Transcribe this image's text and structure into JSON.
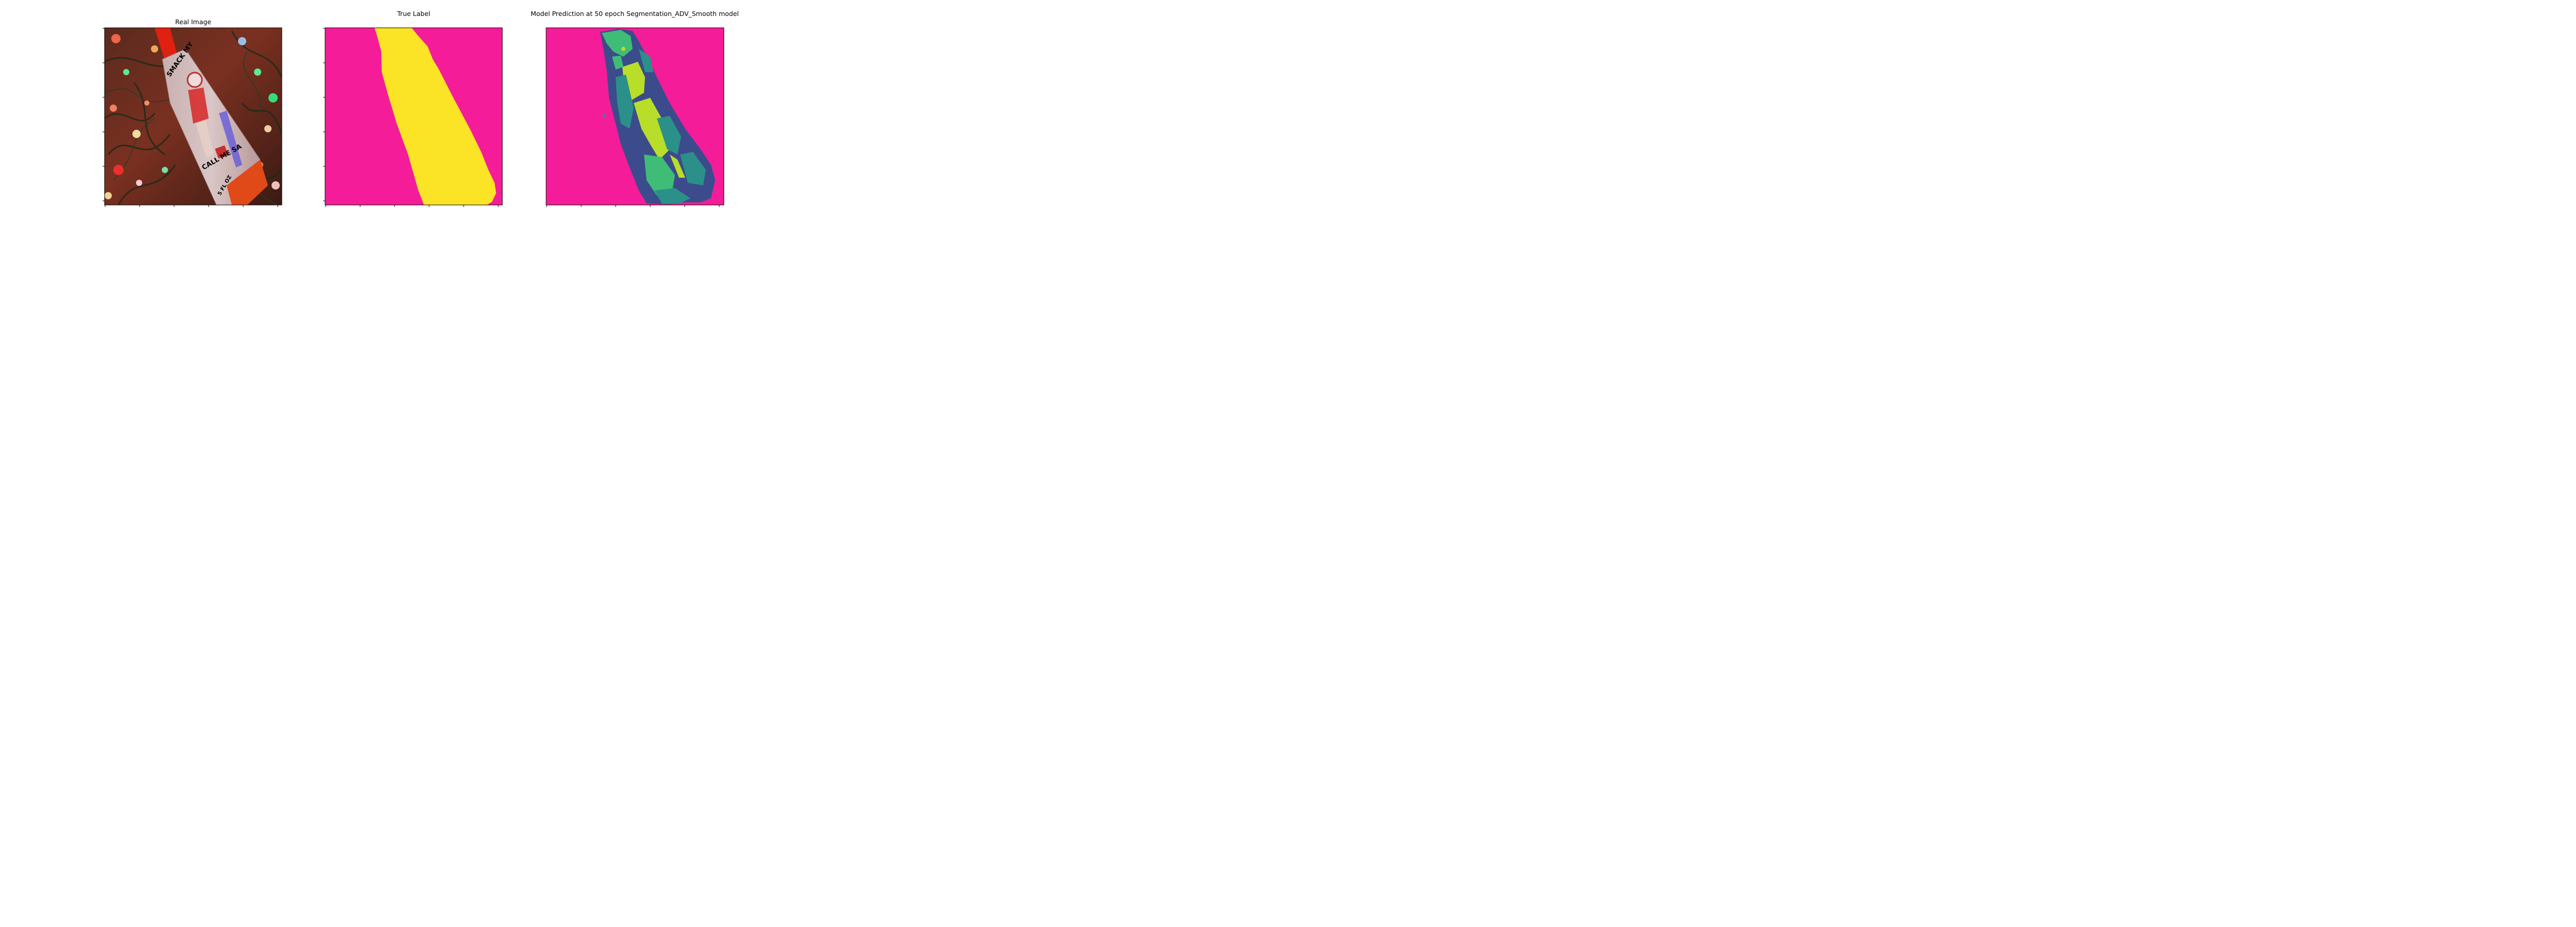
{
  "panels": [
    {
      "title": "Real Image",
      "content": "photo"
    },
    {
      "title": "True Label",
      "content": "mask"
    },
    {
      "title": "Model Prediction at 50 epoch Segmentation_ADV_Smooth model",
      "content": "prediction"
    }
  ],
  "colors": {
    "background_class": "#f41c98",
    "object_class": "#fbe325",
    "prediction_dark_blue": "#3c4b8c",
    "prediction_teal": "#2a9089",
    "prediction_green": "#3fbd76",
    "prediction_yellow_green": "#b8de29"
  }
}
